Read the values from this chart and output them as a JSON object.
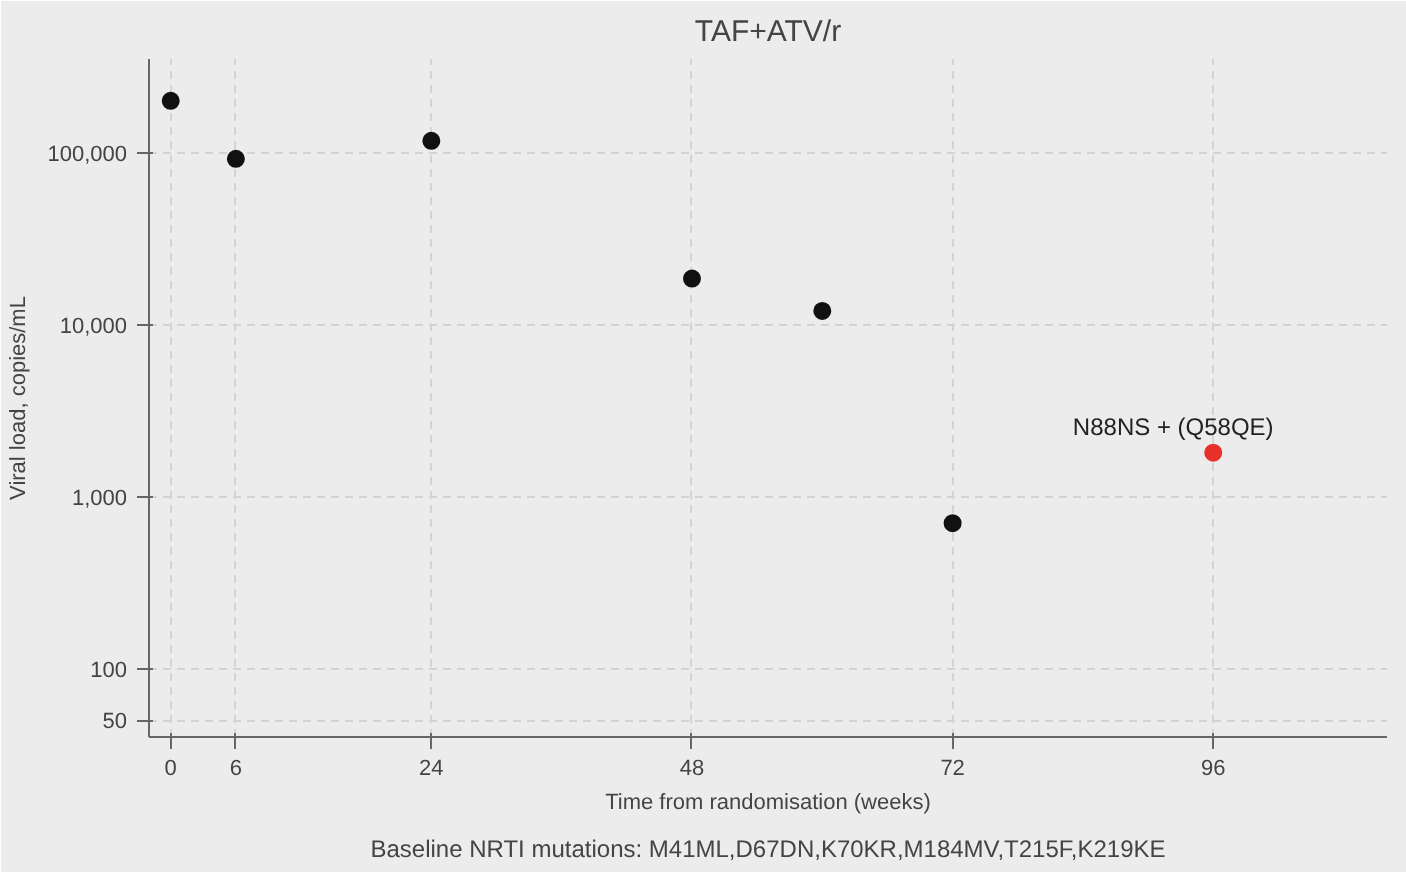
{
  "chart_data": {
    "type": "scatter",
    "title": "TAF+ATV/r",
    "xlabel": "Time from randomisation (weeks)",
    "ylabel": "Viral load, copies/mL",
    "series": [
      {
        "color": "#111111",
        "x": [
          0,
          6,
          24,
          48,
          60,
          72
        ],
        "values": [
          200000,
          92000,
          117000,
          18500,
          12000,
          700
        ]
      },
      {
        "color": "#e8302a",
        "x": [
          96
        ],
        "values": [
          1800
        ]
      }
    ],
    "annotations": [
      {
        "text": "N88NS + (Q58QE)",
        "x": 96,
        "y": 1800
      },
      "Baseline NRTI mutations: M41ML,D67DN,K70KR,M184MV,T215F,K219KE"
    ],
    "log": "y",
    "xlim": [
      -2,
      112
    ],
    "xticks": [
      0,
      6,
      24,
      48,
      72,
      96
    ],
    "ylim": [
      40,
      350000
    ],
    "yticks": [
      50,
      100,
      {
        "value": 1000,
        "label": "1,000"
      },
      {
        "value": 10000,
        "label": "10,000"
      },
      {
        "value": 100000,
        "label": "100,000"
      }
    ],
    "grid": true,
    "marker": "circle"
  }
}
